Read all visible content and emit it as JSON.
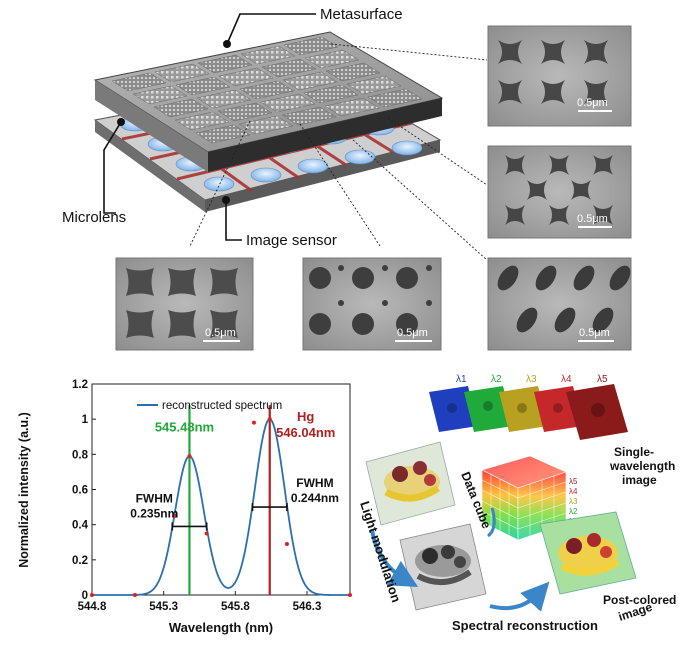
{
  "diagram": {
    "labels": {
      "metasurface": "Metasurface",
      "microlens": "Microlens",
      "image_sensor": "Image sensor"
    },
    "sem_panels": [
      {
        "scale": "0.5μm",
        "pattern": "crosses"
      },
      {
        "scale": "0.5μm",
        "pattern": "diagonal-holes"
      },
      {
        "scale": "0.5μm",
        "pattern": "pillow-squares"
      },
      {
        "scale": "0.5μm",
        "pattern": "circles-dots"
      },
      {
        "scale": "0.5μm",
        "pattern": "tilted-ellipses"
      }
    ],
    "workflow": {
      "bands": [
        {
          "label": "λ1",
          "color": "#1f3fbf"
        },
        {
          "label": "λ2",
          "color": "#1faa3a"
        },
        {
          "label": "λ3",
          "color": "#b8a020"
        },
        {
          "label": "λ4",
          "color": "#c4282a"
        },
        {
          "label": "λ5",
          "color": "#8b1a1a"
        }
      ],
      "cube_bands": [
        "λ5",
        "λ4",
        "λ3",
        "λ2",
        "λ1"
      ],
      "labels": {
        "single_wavelength_line1": "Single-",
        "single_wavelength_line2": "wavelength",
        "single_wavelength_line3": "image",
        "data_cube": "Data cube",
        "light_modulation": "Light modulation",
        "spectral_reconstruction": "Spectral reconstruction",
        "post_colored_line1": "Post-colored",
        "post_colored_line2": "image"
      }
    }
  },
  "chart_data": {
    "type": "line",
    "xlabel": "Wavelength (nm)",
    "ylabel": "Normalized intensity (a.u.)",
    "xlim": [
      544.8,
      546.6
    ],
    "ylim": [
      0,
      1.2
    ],
    "xticks": [
      "544.8",
      "545.3",
      "545.8",
      "546.3"
    ],
    "xtick_values": [
      544.8,
      545.3,
      545.8,
      546.3
    ],
    "yticks": [
      "0",
      "0.2",
      "0.4",
      "0.6",
      "0.8",
      "1",
      "1.2"
    ],
    "ytick_values": [
      0,
      0.2,
      0.4,
      0.6,
      0.8,
      1.0,
      1.2
    ],
    "legend": "reconstructed spectrum",
    "legend_position": "top-right",
    "series": [
      {
        "name": "reconstructed spectrum",
        "color": "#2a6fb0",
        "peaks": [
          {
            "center": 545.48,
            "height": 0.79,
            "fwhm": 0.235
          },
          {
            "center": 546.04,
            "height": 1.0,
            "fwhm": 0.244
          }
        ]
      }
    ],
    "markers": {
      "color": "#e02020",
      "x": [
        544.8,
        545.1,
        545.38,
        545.48,
        545.6,
        545.93,
        546.04,
        546.16,
        546.6
      ],
      "y": [
        0.0,
        0.0,
        0.45,
        0.79,
        0.35,
        0.98,
        1.0,
        0.29,
        0.0
      ]
    },
    "vlines": [
      {
        "x": 545.48,
        "color": "#22a83a",
        "label": "545.48nm"
      },
      {
        "x": 546.04,
        "color": "#b02020",
        "label_top": "Hg",
        "label": "546.04nm"
      }
    ],
    "annotations": [
      {
        "line1": "FWHM",
        "line2": "0.235nm",
        "x_left": 545.36,
        "x_right": 545.6,
        "y": 0.39
      },
      {
        "line1": "FWHM",
        "line2": "0.244nm",
        "x_left": 545.92,
        "x_right": 546.16,
        "y": 0.5
      }
    ]
  }
}
